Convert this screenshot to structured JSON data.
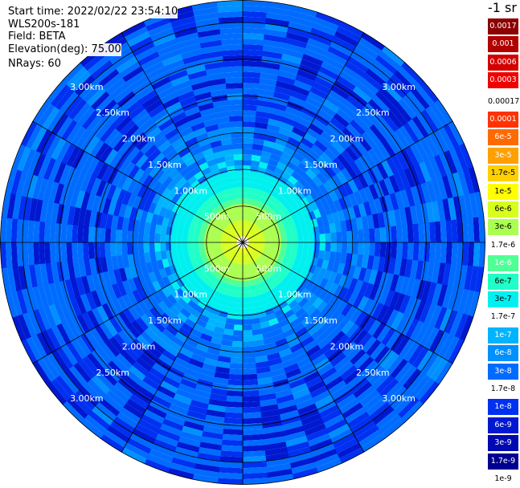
{
  "header": {
    "start_time": "Start time: 2022/02/22 23:54:10",
    "instrument": "WLS200s-181",
    "field": "Field: BETA",
    "elevation": "Elevation(deg): 75.00",
    "nrays": "NRays: 60"
  },
  "colorbar": {
    "unit": "-1 sr",
    "entries": [
      {
        "label": "0.0017",
        "color": "#8b0000",
        "text_color": "#ffffff"
      },
      {
        "label": "0.001",
        "color": "#b00000",
        "text_color": "#ffffff"
      },
      {
        "label": "0.0006",
        "color": "#d40000",
        "text_color": "#ffffff"
      },
      {
        "label": "0.0003",
        "color": "#f00000",
        "text_color": "#ffffff"
      },
      {
        "label": "0.00017",
        "color": "#ffffff",
        "text_color": "#000000"
      },
      {
        "label": "0.0001",
        "color": "#ff3300",
        "text_color": "#ffffff"
      },
      {
        "label": "6e-5",
        "color": "#ff6a00",
        "text_color": "#ffffff"
      },
      {
        "label": "3e-5",
        "color": "#ffa000",
        "text_color": "#ffffff"
      },
      {
        "label": "1.7e-5",
        "color": "#ffd000",
        "text_color": "#000000"
      },
      {
        "label": "1e-5",
        "color": "#ffff00",
        "text_color": "#000000"
      },
      {
        "label": "6e-6",
        "color": "#d6ff1e",
        "text_color": "#000000"
      },
      {
        "label": "3e-6",
        "color": "#aaff50",
        "text_color": "#000000"
      },
      {
        "label": "1.7e-6",
        "color": "#ffffff",
        "text_color": "#000000"
      },
      {
        "label": "1e-6",
        "color": "#50ff96",
        "text_color": "#ffffff"
      },
      {
        "label": "6e-7",
        "color": "#20ffc8",
        "text_color": "#000000"
      },
      {
        "label": "3e-7",
        "color": "#00f0f0",
        "text_color": "#000000"
      },
      {
        "label": "1.7e-7",
        "color": "#ffffff",
        "text_color": "#000000"
      },
      {
        "label": "1e-7",
        "color": "#00b4ff",
        "text_color": "#ffffff"
      },
      {
        "label": "6e-8",
        "color": "#0090ff",
        "text_color": "#ffffff"
      },
      {
        "label": "3e-8",
        "color": "#006cff",
        "text_color": "#ffffff"
      },
      {
        "label": "1.7e-8",
        "color": "#ffffff",
        "text_color": "#000000"
      },
      {
        "label": "1e-8",
        "color": "#0030f0",
        "text_color": "#ffffff"
      },
      {
        "label": "6e-9",
        "color": "#0018d0",
        "text_color": "#ffffff"
      },
      {
        "label": "3e-9",
        "color": "#0008b0",
        "text_color": "#ffffff"
      },
      {
        "label": "1.7e-9",
        "color": "#000090",
        "text_color": "#ffffff"
      },
      {
        "label": "1e-9",
        "color": "#ffffff",
        "text_color": "#000000"
      }
    ]
  },
  "chart_data": {
    "type": "heatmap",
    "projection": "polar (PPI)",
    "field": "BETA",
    "elevation_deg": 75.0,
    "n_rays": 60,
    "ring_labels": [
      "500m",
      "1.00km",
      "1.50km",
      "2.00km",
      "2.50km",
      "3.00km"
    ],
    "ring_ranges_km": [
      0.5,
      1.0,
      1.5,
      2.0,
      2.5,
      3.0
    ],
    "max_range_km": 3.3,
    "radial_profile": [
      {
        "range_km": 0.1,
        "value": 6e-06
      },
      {
        "range_km": 0.3,
        "value": 3e-06
      },
      {
        "range_km": 0.45,
        "value": 1.7e-06
      },
      {
        "range_km": 0.6,
        "value": 6e-07
      },
      {
        "range_km": 0.75,
        "value": 3e-07
      },
      {
        "range_km": 0.9,
        "value": 1.7e-07
      },
      {
        "range_km": 1.0,
        "value": 6e-08
      },
      {
        "range_km": 1.2,
        "value": 3e-08
      },
      {
        "range_km": 1.5,
        "value": 1.7e-08
      },
      {
        "range_km": 2.0,
        "value": 1e-08
      },
      {
        "range_km": 2.5,
        "value": 1e-08
      },
      {
        "range_km": 3.0,
        "value": 1e-08
      }
    ],
    "grid": true
  }
}
